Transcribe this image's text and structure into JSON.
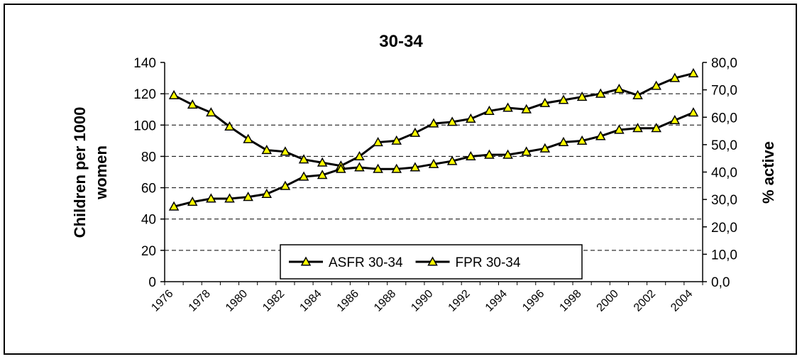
{
  "chart_data": {
    "type": "line",
    "title": "30-34",
    "ylabel": [
      "Children per 1000",
      "women"
    ],
    "y2label": "% active",
    "categories": [
      "1976",
      null,
      "1978",
      null,
      "1980",
      null,
      "1982",
      null,
      "1984",
      null,
      "1986",
      null,
      "1988",
      null,
      "1990",
      null,
      "1992",
      null,
      "1994",
      null,
      "1996",
      null,
      "1998",
      null,
      "2000",
      null,
      "2002",
      null,
      "2004"
    ],
    "ylim": [
      0,
      140
    ],
    "yticks": [
      0,
      20,
      40,
      60,
      80,
      100,
      120,
      140
    ],
    "y2lim": [
      0,
      80
    ],
    "y2ticks": [
      {
        "value": 0,
        "label": "0,0"
      },
      {
        "value": 10,
        "label": "10,0"
      },
      {
        "value": 20,
        "label": "20,0"
      },
      {
        "value": 30,
        "label": "30,0"
      },
      {
        "value": 40,
        "label": "40,0"
      },
      {
        "value": 50,
        "label": "50,0"
      },
      {
        "value": 60,
        "label": "60,0"
      },
      {
        "value": 70,
        "label": "70,0"
      },
      {
        "value": 80,
        "label": "80,0"
      }
    ],
    "grid": true,
    "marker": "triangle",
    "marker_color": "#ffff00",
    "series": [
      {
        "name": "ASFR 30-34",
        "color": "#000000",
        "values": [
          119,
          113,
          108,
          99,
          91,
          84,
          83,
          78,
          76,
          74,
          80,
          89,
          90,
          95,
          101,
          102,
          104,
          109,
          111,
          110,
          114,
          116,
          118,
          120,
          123,
          119,
          125,
          130,
          133
        ]
      },
      {
        "name": "FPR 30-34",
        "color": "#000000",
        "axis": "y2",
        "values": [
          27.4,
          29.1,
          30.3,
          30.3,
          30.9,
          32.0,
          34.9,
          38.3,
          38.9,
          41.1,
          41.7,
          41.1,
          41.1,
          41.7,
          42.9,
          44.0,
          45.7,
          46.3,
          46.3,
          47.4,
          48.6,
          50.9,
          51.4,
          53.1,
          55.4,
          56.0,
          56.0,
          58.9,
          61.7
        ]
      }
    ]
  }
}
